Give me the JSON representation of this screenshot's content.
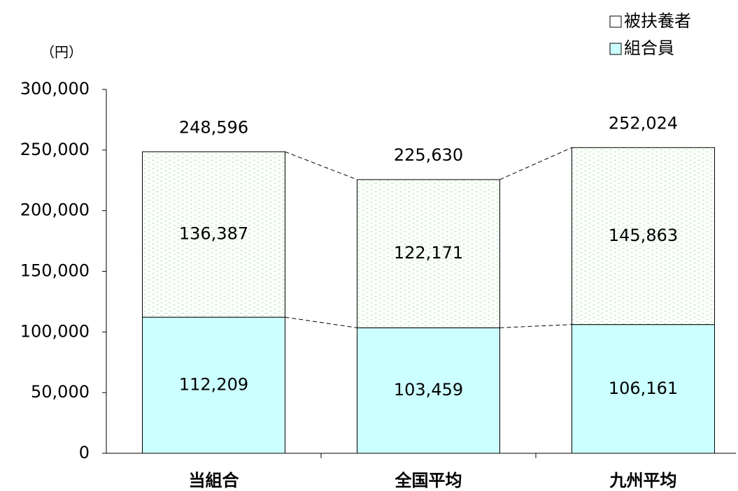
{
  "chart_data": {
    "type": "stacked_bar",
    "y_unit": "（円）",
    "categories": [
      "当組合",
      "全国平均",
      "九州平均"
    ],
    "series": [
      {
        "name": "組合員",
        "color": "#ccffff",
        "values": [
          112209,
          103459,
          106161
        ],
        "value_labels": [
          "112,209",
          "103,459",
          "106,161"
        ]
      },
      {
        "name": "被扶養者",
        "color": "#ffffff",
        "values": [
          136387,
          122171,
          145863
        ],
        "value_labels": [
          "136,387",
          "122,171",
          "145,863"
        ]
      }
    ],
    "totals": [
      248596,
      225630,
      252024
    ],
    "total_labels": [
      "248,596",
      "225,630",
      "252,024"
    ],
    "ylim": [
      0,
      300000
    ],
    "yticks": [
      0,
      {
        "value": 50000,
        "label": "50,000"
      },
      {
        "value": 100000,
        "label": "100,000"
      },
      {
        "value": 150000,
        "label": "150,000"
      },
      {
        "value": 200000,
        "label": "200,000"
      },
      {
        "value": 250000,
        "label": "250,000"
      },
      {
        "value": 300000,
        "label": "300,000"
      }
    ],
    "grid": false
  }
}
